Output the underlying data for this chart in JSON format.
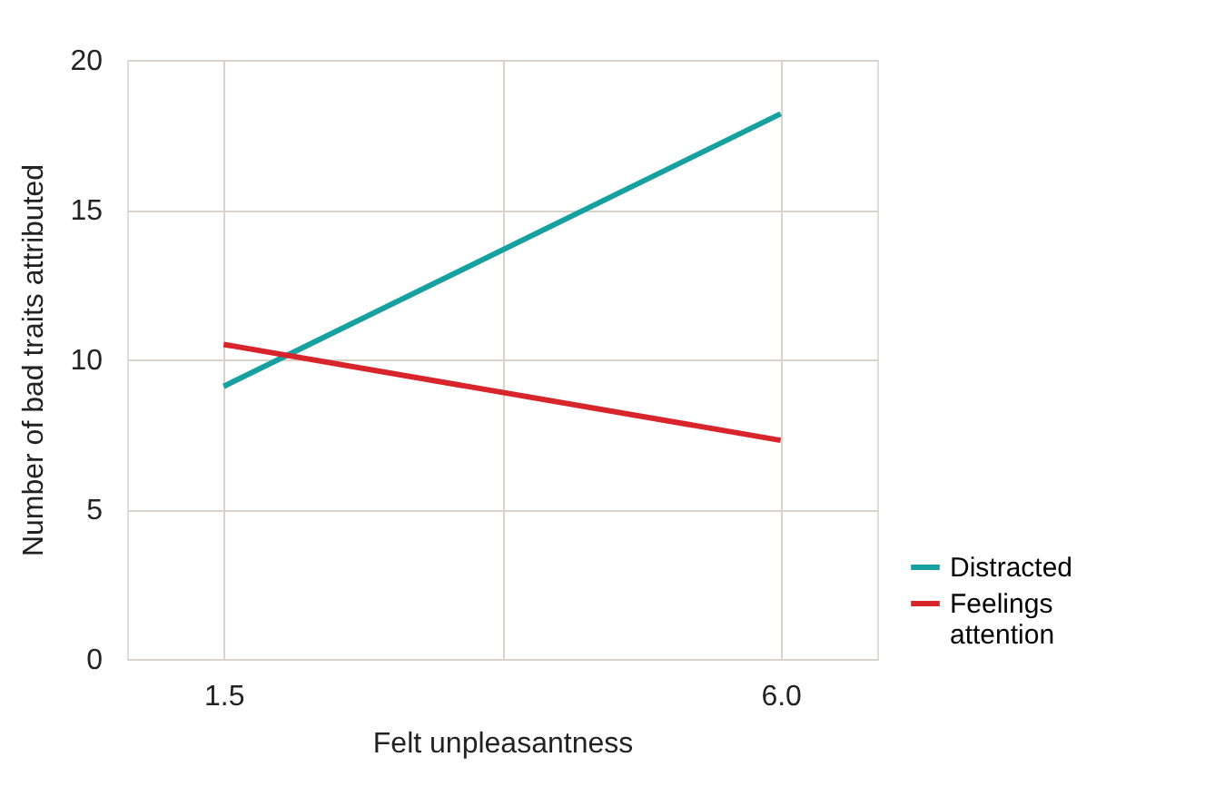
{
  "chart_data": {
    "type": "line",
    "xlabel": "Felt unpleasantness",
    "ylabel": "Number of bad traits attributed",
    "x": [
      1.5,
      6.0
    ],
    "series": [
      {
        "name": "Distracted",
        "color": "#16a0a0",
        "values": [
          9.1,
          18.2
        ]
      },
      {
        "name": "Feelings attention",
        "color": "#d8252b",
        "values": [
          10.5,
          7.3
        ]
      }
    ],
    "xlim": [
      0.72,
      6.78
    ],
    "xticks": [
      {
        "value": 1.5,
        "label": "1.5"
      },
      {
        "value": 3.75,
        "label": null
      },
      {
        "value": 6.0,
        "label": "6.0"
      }
    ],
    "ylim": [
      0,
      20
    ],
    "yticks": [
      0,
      5,
      10,
      15,
      20
    ],
    "grid": true,
    "legend": "right",
    "marker": "none",
    "line_style": "solid"
  }
}
